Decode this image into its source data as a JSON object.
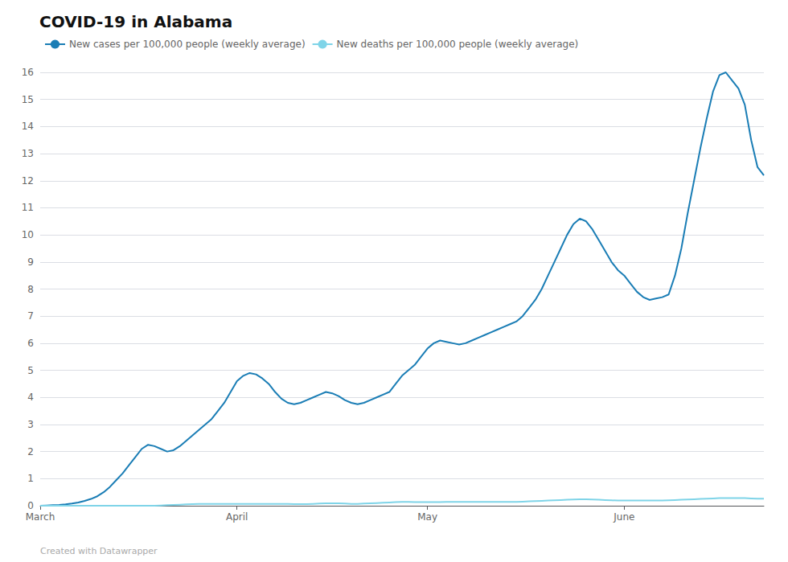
{
  "chart_data": {
    "type": "line",
    "title": "COVID-19 in Alabama",
    "annotations": [
      "Created with Datawrapper"
    ],
    "categories": [
      "March",
      null,
      null,
      null,
      null,
      null,
      null,
      null,
      null,
      null,
      null,
      null,
      null,
      null,
      null,
      null,
      null,
      null,
      null,
      null,
      null,
      null,
      null,
      null,
      null,
      null,
      null,
      null,
      null,
      null,
      null,
      "April",
      null,
      null,
      null,
      null,
      null,
      null,
      null,
      null,
      null,
      null,
      null,
      null,
      null,
      null,
      null,
      null,
      null,
      null,
      null,
      null,
      null,
      null,
      null,
      null,
      null,
      null,
      null,
      null,
      null,
      "May",
      null,
      null,
      null,
      null,
      null,
      null,
      null,
      null,
      null,
      null,
      null,
      null,
      null,
      null,
      null,
      null,
      null,
      null,
      null,
      null,
      null,
      null,
      null,
      null,
      null,
      null,
      null,
      null,
      null,
      null,
      "June",
      null,
      null,
      null,
      null,
      null,
      null,
      null,
      null,
      null,
      null,
      null,
      null,
      null,
      null,
      null,
      null,
      null,
      null,
      null,
      null,
      null,
      null
    ],
    "series": [
      {
        "name": "New cases per 100,000 people (weekly average)",
        "color": "#1a7db5",
        "values": [
          0.0,
          0.01,
          0.02,
          0.03,
          0.05,
          0.08,
          0.12,
          0.18,
          0.25,
          0.35,
          0.5,
          0.7,
          0.95,
          1.2,
          1.5,
          1.8,
          2.1,
          2.25,
          2.2,
          2.1,
          2.0,
          2.05,
          2.2,
          2.4,
          2.6,
          2.8,
          3.0,
          3.2,
          3.5,
          3.8,
          4.2,
          4.6,
          4.8,
          4.9,
          4.85,
          4.7,
          4.5,
          4.2,
          3.95,
          3.8,
          3.75,
          3.8,
          3.9,
          4.0,
          4.1,
          4.2,
          4.15,
          4.05,
          3.9,
          3.8,
          3.75,
          3.8,
          3.9,
          4.0,
          4.1,
          4.2,
          4.5,
          4.8,
          5.0,
          5.2,
          5.5,
          5.8,
          6.0,
          6.1,
          6.05,
          6.0,
          5.95,
          6.0,
          6.1,
          6.2,
          6.3,
          6.4,
          6.5,
          6.6,
          6.7,
          6.8,
          7.0,
          7.3,
          7.6,
          8.0,
          8.5,
          9.0,
          9.5,
          10.0,
          10.4,
          10.6,
          10.5,
          10.2,
          9.8,
          9.4,
          9.0,
          8.7,
          8.5,
          8.2,
          7.9,
          7.7,
          7.6,
          7.65,
          7.7,
          7.8,
          8.5,
          9.5,
          10.8,
          12.0,
          13.2,
          14.3,
          15.3,
          15.9,
          16.0,
          15.7,
          15.4,
          14.8,
          13.5,
          12.5,
          12.2
        ]
      },
      {
        "name": "New deaths per 100,000 people (weekly average)",
        "color": "#7fd4e8",
        "values": [
          0.0,
          0.0,
          0.0,
          0.0,
          0.0,
          0.0,
          0.0,
          0.0,
          0.0,
          0.0,
          0.0,
          0.0,
          0.0,
          0.0,
          0.0,
          0.0,
          0.0,
          0.0,
          0.0,
          0.01,
          0.02,
          0.03,
          0.04,
          0.05,
          0.06,
          0.07,
          0.07,
          0.07,
          0.07,
          0.07,
          0.07,
          0.07,
          0.07,
          0.07,
          0.07,
          0.07,
          0.07,
          0.07,
          0.07,
          0.07,
          0.06,
          0.06,
          0.06,
          0.07,
          0.08,
          0.09,
          0.09,
          0.09,
          0.08,
          0.07,
          0.07,
          0.08,
          0.09,
          0.1,
          0.11,
          0.12,
          0.13,
          0.14,
          0.14,
          0.13,
          0.13,
          0.13,
          0.13,
          0.13,
          0.14,
          0.14,
          0.14,
          0.14,
          0.14,
          0.14,
          0.14,
          0.14,
          0.14,
          0.14,
          0.14,
          0.14,
          0.15,
          0.16,
          0.17,
          0.18,
          0.19,
          0.2,
          0.21,
          0.22,
          0.23,
          0.24,
          0.24,
          0.23,
          0.22,
          0.21,
          0.2,
          0.19,
          0.19,
          0.19,
          0.19,
          0.19,
          0.19,
          0.19,
          0.19,
          0.2,
          0.21,
          0.22,
          0.23,
          0.24,
          0.25,
          0.26,
          0.27,
          0.28,
          0.28,
          0.28,
          0.28,
          0.28,
          0.27,
          0.26,
          0.26
        ]
      }
    ],
    "ylim": [
      0,
      16
    ],
    "yticks": [
      0,
      1,
      2,
      3,
      4,
      5,
      6,
      7,
      8,
      9,
      10,
      11,
      12,
      13,
      14,
      15,
      16
    ],
    "grid": true,
    "legend": "upper left"
  }
}
